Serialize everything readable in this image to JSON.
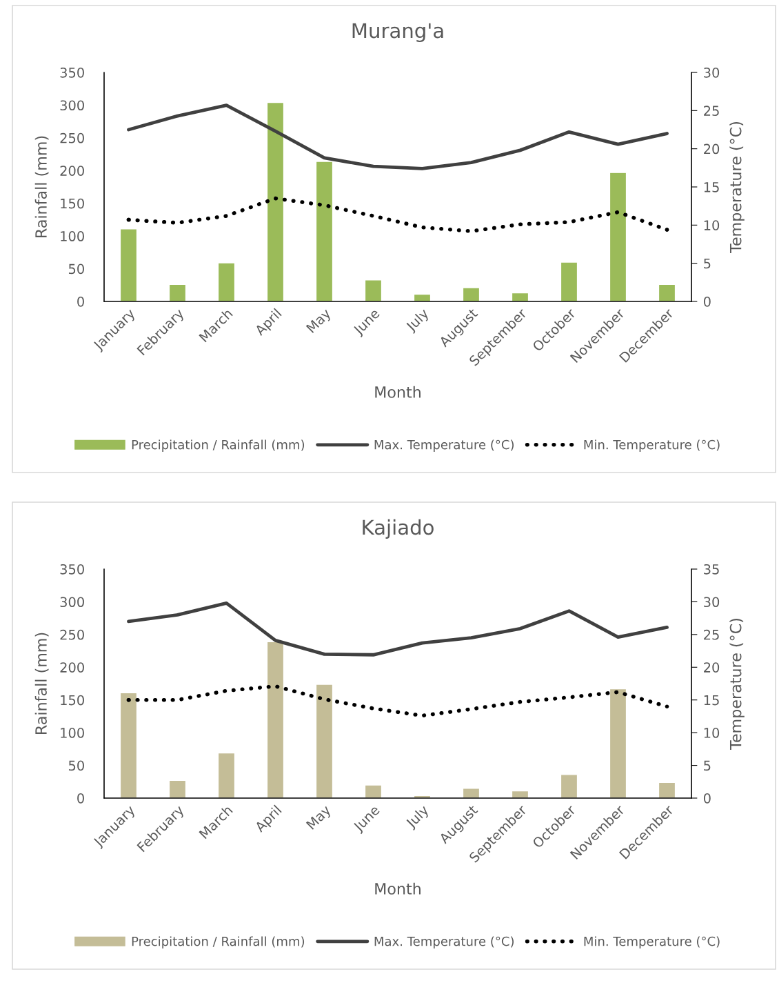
{
  "chart_data": [
    {
      "type": "bar",
      "title": "Murang'a",
      "xlabel": "Month",
      "ylabel": "Rainfall (mm)",
      "y2label": "Temperature (°C)",
      "categories": [
        "January",
        "February",
        "March",
        "April",
        "May",
        "June",
        "July",
        "August",
        "September",
        "October",
        "November",
        "December"
      ],
      "ylim": [
        0,
        350
      ],
      "yticks": [
        0,
        50,
        100,
        150,
        200,
        250,
        300,
        350
      ],
      "y2lim": [
        0,
        30
      ],
      "y2ticks": [
        0,
        5,
        10,
        15,
        20,
        25,
        30
      ],
      "grid": false,
      "legend": "bottom",
      "marker": "none",
      "series": [
        {
          "name": "Precipitation / Rainfall (mm)",
          "color": "#9bbb59",
          "values": [
            111,
            26,
            59,
            304,
            214,
            33,
            11,
            21,
            13,
            60,
            197,
            26
          ]
        },
        {
          "name": "Max. Temperature (°C)",
          "type": "line",
          "axis": "y2",
          "color": "#404040",
          "line_style": "solid",
          "values": [
            22.5,
            24.3,
            25.7,
            22.3,
            18.8,
            17.7,
            17.4,
            18.2,
            19.8,
            22.2,
            20.6,
            22.0
          ]
        },
        {
          "name": "Min. Temperature (°C)",
          "type": "line",
          "axis": "y2",
          "color": "#000000",
          "line_style": "dotted",
          "values": [
            10.7,
            10.3,
            11.2,
            13.5,
            12.6,
            11.2,
            9.7,
            9.2,
            10.1,
            10.4,
            11.7,
            9.4
          ]
        }
      ]
    },
    {
      "type": "bar",
      "title": "Kajiado",
      "xlabel": "Month",
      "ylabel": "Rainfall (mm)",
      "y2label": "Temperature (°C)",
      "categories": [
        "January",
        "February",
        "March",
        "April",
        "May",
        "June",
        "July",
        "August",
        "September",
        "October",
        "November",
        "December"
      ],
      "ylim": [
        0,
        350
      ],
      "yticks": [
        0,
        50,
        100,
        150,
        200,
        250,
        300,
        350
      ],
      "y2lim": [
        0,
        35
      ],
      "y2ticks": [
        0,
        5,
        10,
        15,
        20,
        25,
        30,
        35
      ],
      "grid": false,
      "legend": "bottom",
      "marker": "none",
      "series": [
        {
          "name": "Precipitation / Rainfall (mm)",
          "color": "#c4bd97",
          "values": [
            161,
            27,
            69,
            239,
            174,
            20,
            4,
            15,
            11,
            36,
            167,
            24
          ]
        },
        {
          "name": "Max. Temperature (°C)",
          "type": "line",
          "axis": "y2",
          "color": "#404040",
          "line_style": "solid",
          "values": [
            27.0,
            28.0,
            29.8,
            24.1,
            22.0,
            21.9,
            23.7,
            24.5,
            25.9,
            28.6,
            24.6,
            26.1
          ]
        },
        {
          "name": "Min. Temperature (°C)",
          "type": "line",
          "axis": "y2",
          "color": "#000000",
          "line_style": "dotted",
          "values": [
            15.0,
            15.0,
            16.4,
            17.1,
            15.1,
            13.7,
            12.6,
            13.6,
            14.7,
            15.4,
            16.2,
            14.0
          ]
        }
      ]
    }
  ]
}
